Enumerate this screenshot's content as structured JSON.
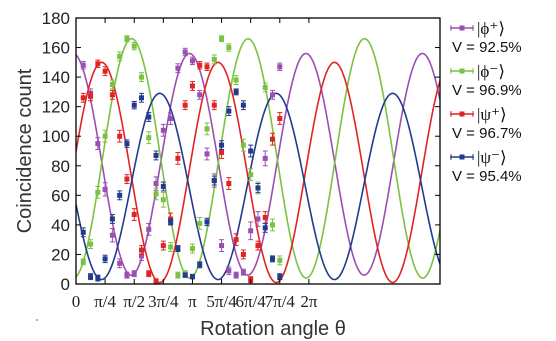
{
  "chart_data": {
    "type": "line",
    "xlabel": "Rotation angle θ",
    "ylabel": "Coincidence count",
    "xlim": [
      0,
      9.82
    ],
    "ylim": [
      0,
      180
    ],
    "y_ticks": [
      0,
      20,
      40,
      60,
      80,
      100,
      120,
      140,
      160,
      180
    ],
    "x_ticks": [
      {
        "value": 0,
        "label": "0"
      },
      {
        "value": 0.785,
        "label": "π/4"
      },
      {
        "value": 1.571,
        "label": "π/2"
      },
      {
        "value": 2.356,
        "label": "3π/4"
      },
      {
        "value": 3.142,
        "label": "π"
      },
      {
        "value": 3.927,
        "label": "5π/4"
      },
      {
        "value": 4.712,
        "label": "6π/4"
      },
      {
        "value": 5.498,
        "label": "7π/4"
      },
      {
        "value": 6.283,
        "label": "2π"
      }
    ],
    "grid": false,
    "legend_position": "right",
    "series": [
      {
        "name": "|ϕ⁺⟩",
        "visibility": "V = 92.5%",
        "color": "#9b4fb0",
        "fit": {
          "offset": 81,
          "amplitude": 75,
          "period": 3.1416,
          "phase": -0.08
        },
        "points": [
          {
            "x": 0.196,
            "y": 148,
            "err": 2.5
          },
          {
            "x": 0.393,
            "y": 129,
            "err": 3
          },
          {
            "x": 0.589,
            "y": 95,
            "err": 4
          },
          {
            "x": 0.785,
            "y": 64,
            "err": 4.5
          },
          {
            "x": 0.982,
            "y": 33,
            "err": 4.5
          },
          {
            "x": 1.178,
            "y": 14,
            "err": 3
          },
          {
            "x": 1.374,
            "y": 6,
            "err": 2
          },
          {
            "x": 1.571,
            "y": 7,
            "err": 2
          },
          {
            "x": 1.767,
            "y": 19,
            "err": 3
          },
          {
            "x": 1.963,
            "y": 37,
            "err": 4
          },
          {
            "x": 2.16,
            "y": 68,
            "err": 4.5
          },
          {
            "x": 2.356,
            "y": 104,
            "err": 4
          },
          {
            "x": 2.553,
            "y": 112,
            "err": 4
          },
          {
            "x": 2.749,
            "y": 146,
            "err": 3
          },
          {
            "x": 2.945,
            "y": 157,
            "err": 2.5
          },
          {
            "x": 3.142,
            "y": 151,
            "err": 2.5
          },
          {
            "x": 3.338,
            "y": 128,
            "err": 3
          },
          {
            "x": 3.534,
            "y": 88,
            "err": 4
          },
          {
            "x": 3.731,
            "y": 70,
            "err": 4.5
          },
          {
            "x": 3.927,
            "y": 26,
            "err": 4
          },
          {
            "x": 4.123,
            "y": 9,
            "err": 2.5
          },
          {
            "x": 4.32,
            "y": 6,
            "err": 2
          },
          {
            "x": 4.516,
            "y": 8,
            "err": 2
          },
          {
            "x": 4.712,
            "y": 36,
            "err": 6
          },
          {
            "x": 4.909,
            "y": 44,
            "err": 5
          },
          {
            "x": 5.105,
            "y": 85,
            "err": 5
          },
          {
            "x": 5.301,
            "y": 128,
            "err": 3
          },
          {
            "x": 5.498,
            "y": 147,
            "err": 2.5
          }
        ]
      },
      {
        "name": "|ϕ⁻⟩",
        "visibility": "V = 96.9%",
        "color": "#7cc242",
        "fit": {
          "offset": 85,
          "amplitude": 81,
          "period": 3.1416,
          "phase": 1.5
        },
        "points": [
          {
            "x": 0.196,
            "y": 15,
            "err": 2
          },
          {
            "x": 0.393,
            "y": 27,
            "err": 3
          },
          {
            "x": 0.589,
            "y": 62,
            "err": 4
          },
          {
            "x": 0.785,
            "y": 100,
            "err": 4
          },
          {
            "x": 0.982,
            "y": 135,
            "err": 3
          },
          {
            "x": 1.178,
            "y": 154,
            "err": 3
          },
          {
            "x": 1.374,
            "y": 166,
            "err": 2
          },
          {
            "x": 1.571,
            "y": 161,
            "err": 2.5
          },
          {
            "x": 1.767,
            "y": 140,
            "err": 3
          },
          {
            "x": 1.963,
            "y": 99,
            "err": 4
          },
          {
            "x": 2.16,
            "y": 61,
            "err": 4
          },
          {
            "x": 2.356,
            "y": 57,
            "err": 5
          },
          {
            "x": 2.553,
            "y": 25,
            "err": 3
          },
          {
            "x": 2.749,
            "y": 6,
            "err": 2
          },
          {
            "x": 2.945,
            "y": 7,
            "err": 2
          },
          {
            "x": 3.142,
            "y": 24,
            "err": 3
          },
          {
            "x": 3.338,
            "y": 41,
            "err": 4
          },
          {
            "x": 3.534,
            "y": 105,
            "err": 4
          },
          {
            "x": 3.731,
            "y": 152,
            "err": 3
          },
          {
            "x": 3.927,
            "y": 166,
            "err": 2
          },
          {
            "x": 4.123,
            "y": 160,
            "err": 2.5
          },
          {
            "x": 4.32,
            "y": 138,
            "err": 3
          },
          {
            "x": 4.516,
            "y": 94,
            "err": 4
          },
          {
            "x": 4.712,
            "y": 74,
            "err": 4
          },
          {
            "x": 4.909,
            "y": 65,
            "err": 4
          },
          {
            "x": 5.105,
            "y": 133,
            "err": 3
          },
          {
            "x": 5.301,
            "y": 40,
            "err": 4
          },
          {
            "x": 5.498,
            "y": 16,
            "err": 3
          }
        ]
      },
      {
        "name": "|ψ⁺⟩",
        "visibility": "V = 96.7%",
        "color": "#e02424",
        "fit": {
          "offset": 75.5,
          "amplitude": 74.5,
          "period": 3.1416,
          "phase": 0.69
        },
        "points": [
          {
            "x": 0.196,
            "y": 126,
            "err": 3
          },
          {
            "x": 0.393,
            "y": 127,
            "err": 3
          },
          {
            "x": 0.589,
            "y": 149,
            "err": 2.5
          },
          {
            "x": 0.785,
            "y": 144,
            "err": 3
          },
          {
            "x": 0.982,
            "y": 128,
            "err": 3
          },
          {
            "x": 1.178,
            "y": 100,
            "err": 4
          },
          {
            "x": 1.374,
            "y": 71,
            "err": 3
          },
          {
            "x": 1.571,
            "y": 47,
            "err": 4
          },
          {
            "x": 1.767,
            "y": 23,
            "err": 3
          },
          {
            "x": 1.963,
            "y": 7,
            "err": 2
          },
          {
            "x": 2.16,
            "y": 2,
            "err": 1.5
          },
          {
            "x": 2.356,
            "y": 26,
            "err": 3
          },
          {
            "x": 2.553,
            "y": 44,
            "err": 4
          },
          {
            "x": 2.749,
            "y": 85,
            "err": 4
          },
          {
            "x": 2.945,
            "y": 121,
            "err": 3
          },
          {
            "x": 3.142,
            "y": 134,
            "err": 3
          },
          {
            "x": 3.338,
            "y": 148,
            "err": 2.5
          },
          {
            "x": 3.534,
            "y": 147,
            "err": 2.5
          },
          {
            "x": 3.731,
            "y": 121,
            "err": 3
          },
          {
            "x": 3.927,
            "y": 89,
            "err": 4
          },
          {
            "x": 4.123,
            "y": 68,
            "err": 4
          },
          {
            "x": 4.32,
            "y": 30,
            "err": 4
          },
          {
            "x": 4.516,
            "y": 20,
            "err": 3
          },
          {
            "x": 4.712,
            "y": 3,
            "err": 2
          },
          {
            "x": 4.909,
            "y": 26,
            "err": 3
          },
          {
            "x": 5.105,
            "y": 45,
            "err": 4
          },
          {
            "x": 5.301,
            "y": 98,
            "err": 4
          },
          {
            "x": 5.498,
            "y": 112,
            "err": 4
          }
        ]
      },
      {
        "name": "|ψ⁻⟩",
        "visibility": "V = 95.4%",
        "color": "#233b8c",
        "fit": {
          "offset": 66,
          "amplitude": 63,
          "period": 3.1416,
          "phase": 2.26
        },
        "points": [
          {
            "x": 0.196,
            "y": 35,
            "err": 3
          },
          {
            "x": 0.393,
            "y": 5,
            "err": 2
          },
          {
            "x": 0.589,
            "y": 4,
            "err": 2
          },
          {
            "x": 0.785,
            "y": 17,
            "err": 2.5
          },
          {
            "x": 0.982,
            "y": 44,
            "err": 3
          },
          {
            "x": 1.178,
            "y": 60,
            "err": 3
          },
          {
            "x": 1.374,
            "y": 95,
            "err": 2.5
          },
          {
            "x": 1.571,
            "y": 121,
            "err": 2.5
          },
          {
            "x": 1.767,
            "y": 126,
            "err": 3
          },
          {
            "x": 1.963,
            "y": 113,
            "err": 3
          },
          {
            "x": 2.16,
            "y": 87,
            "err": 3
          },
          {
            "x": 2.356,
            "y": 66,
            "err": 3
          },
          {
            "x": 2.553,
            "y": 42,
            "err": 2
          },
          {
            "x": 2.749,
            "y": 24,
            "err": 2
          },
          {
            "x": 2.945,
            "y": 6,
            "err": 1.5
          },
          {
            "x": 3.142,
            "y": 5,
            "err": 1.5
          },
          {
            "x": 3.338,
            "y": 13,
            "err": 2
          },
          {
            "x": 3.534,
            "y": 42,
            "err": 2.5
          },
          {
            "x": 3.731,
            "y": 70,
            "err": 3
          },
          {
            "x": 3.927,
            "y": 94,
            "err": 3
          },
          {
            "x": 4.123,
            "y": 117,
            "err": 3
          },
          {
            "x": 4.32,
            "y": 130,
            "err": 2
          },
          {
            "x": 4.516,
            "y": 121,
            "err": 3
          },
          {
            "x": 4.712,
            "y": 90,
            "err": 4
          },
          {
            "x": 4.909,
            "y": 65,
            "err": 3
          },
          {
            "x": 5.105,
            "y": 38,
            "err": 3
          },
          {
            "x": 5.301,
            "y": 17,
            "err": 2
          },
          {
            "x": 5.498,
            "y": 5,
            "err": 2
          }
        ]
      }
    ]
  }
}
